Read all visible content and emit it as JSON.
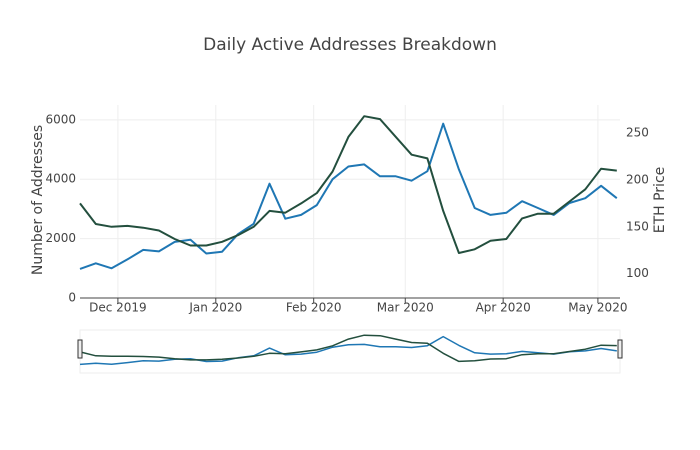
{
  "chart_data": {
    "type": "line",
    "title": "Daily Active Addresses Breakdown",
    "y_label": "Number of Addresses",
    "y2_label": "ETH Price",
    "x": [
      "2019-11-19",
      "2019-11-24",
      "2019-11-29",
      "2019-12-04",
      "2019-12-09",
      "2019-12-14",
      "2019-12-19",
      "2019-12-24",
      "2019-12-29",
      "2020-01-03",
      "2020-01-08",
      "2020-01-13",
      "2020-01-18",
      "2020-01-23",
      "2020-01-28",
      "2020-02-02",
      "2020-02-07",
      "2020-02-12",
      "2020-02-17",
      "2020-02-22",
      "2020-02-27",
      "2020-03-03",
      "2020-03-08",
      "2020-03-13",
      "2020-03-18",
      "2020-03-23",
      "2020-03-28",
      "2020-04-02",
      "2020-04-07",
      "2020-04-12",
      "2020-04-17",
      "2020-04-22",
      "2020-04-27",
      "2020-05-02",
      "2020-05-07"
    ],
    "series": [
      {
        "color": "#1f77b4",
        "values": [
          980,
          1170,
          1000,
          1300,
          1620,
          1570,
          1890,
          1960,
          1500,
          1560,
          2150,
          2500,
          3850,
          2670,
          2800,
          3130,
          4000,
          4430,
          4500,
          4100,
          4100,
          3950,
          4270,
          5870,
          4330,
          3030,
          2800,
          2870,
          3260,
          3030,
          2800,
          3200,
          3360,
          3780,
          3360
        ]
      },
      {
        "color": "#234f3e",
        "axis": "y2",
        "values": [
          175,
          153,
          150,
          151,
          149,
          146,
          137,
          130,
          130,
          134,
          141,
          150,
          167,
          165,
          175,
          186,
          209,
          246,
          268,
          265,
          246,
          227,
          223,
          167,
          122,
          126,
          135,
          137,
          159,
          164,
          164,
          177,
          190,
          212,
          210
        ]
      }
    ],
    "xlim": [
      "2019-11-19",
      "2020-05-08"
    ],
    "xticks": [
      {
        "value": "2019-12-01",
        "label": "Dec 2019"
      },
      {
        "value": "2020-01-01",
        "label": "Jan 2020"
      },
      {
        "value": "2020-02-01",
        "label": "Feb 2020"
      },
      {
        "value": "2020-03-01",
        "label": "Mar 2020"
      },
      {
        "value": "2020-04-01",
        "label": "Apr 2020"
      },
      {
        "value": "2020-05-01",
        "label": "May 2020"
      }
    ],
    "ylim": [
      0,
      6500
    ],
    "yticks": [
      0,
      2000,
      4000,
      6000
    ],
    "y2lim": [
      74,
      280
    ],
    "y2ticks": [
      100,
      150,
      200,
      250
    ],
    "grid": true,
    "rangeslider": true
  }
}
